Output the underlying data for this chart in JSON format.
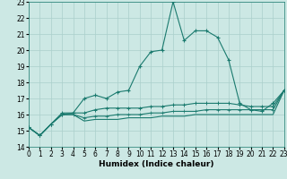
{
  "xlabel": "Humidex (Indice chaleur)",
  "xlim": [
    0,
    23
  ],
  "ylim": [
    14,
    23
  ],
  "yticks": [
    14,
    15,
    16,
    17,
    18,
    19,
    20,
    21,
    22,
    23
  ],
  "xticks": [
    0,
    1,
    2,
    3,
    4,
    5,
    6,
    7,
    8,
    9,
    10,
    11,
    12,
    13,
    14,
    15,
    16,
    17,
    18,
    19,
    20,
    21,
    22,
    23
  ],
  "bg_color": "#cce8e4",
  "grid_color": "#aacfcb",
  "line_color": "#1a7a6e",
  "line1_x": [
    0,
    1,
    2,
    3,
    4,
    5,
    6,
    7,
    8,
    9,
    10,
    11,
    12,
    13,
    14,
    15,
    16,
    17,
    18,
    19,
    20,
    21,
    22,
    23
  ],
  "line1_y": [
    15.2,
    14.7,
    15.4,
    16.0,
    16.1,
    17.0,
    17.2,
    17.0,
    17.4,
    17.5,
    19.0,
    19.9,
    20.0,
    23.0,
    20.6,
    21.2,
    21.2,
    20.8,
    19.4,
    16.7,
    16.3,
    16.2,
    16.7,
    17.5
  ],
  "line2_x": [
    0,
    1,
    2,
    3,
    4,
    5,
    6,
    7,
    8,
    9,
    10,
    11,
    12,
    13,
    14,
    15,
    16,
    17,
    18,
    19,
    20,
    21,
    22,
    23
  ],
  "line2_y": [
    15.2,
    14.7,
    15.4,
    16.1,
    16.1,
    16.1,
    16.3,
    16.4,
    16.4,
    16.4,
    16.4,
    16.5,
    16.5,
    16.6,
    16.6,
    16.7,
    16.7,
    16.7,
    16.7,
    16.6,
    16.5,
    16.5,
    16.5,
    17.5
  ],
  "line3_x": [
    0,
    1,
    2,
    3,
    4,
    5,
    6,
    7,
    8,
    9,
    10,
    11,
    12,
    13,
    14,
    15,
    16,
    17,
    18,
    19,
    20,
    21,
    22,
    23
  ],
  "line3_y": [
    15.2,
    14.7,
    15.4,
    16.0,
    16.0,
    15.8,
    15.9,
    15.9,
    16.0,
    16.0,
    16.0,
    16.1,
    16.1,
    16.2,
    16.2,
    16.2,
    16.3,
    16.3,
    16.3,
    16.3,
    16.3,
    16.3,
    16.3,
    17.5
  ],
  "line4_x": [
    0,
    1,
    2,
    3,
    4,
    5,
    6,
    7,
    8,
    9,
    10,
    11,
    12,
    13,
    14,
    15,
    16,
    17,
    18,
    19,
    20,
    21,
    22,
    23
  ],
  "line4_y": [
    15.2,
    14.7,
    15.4,
    16.0,
    16.0,
    15.6,
    15.7,
    15.7,
    15.7,
    15.8,
    15.8,
    15.8,
    15.9,
    15.9,
    15.9,
    16.0,
    16.0,
    16.0,
    16.0,
    16.0,
    16.0,
    16.0,
    16.0,
    17.5
  ],
  "tick_fontsize": 5.5,
  "xlabel_fontsize": 6.5
}
